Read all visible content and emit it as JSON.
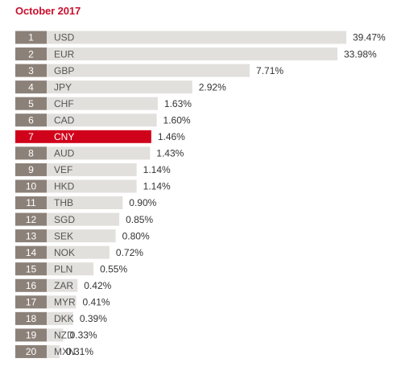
{
  "chart_data": {
    "type": "bar",
    "title": "October 2017",
    "orientation": "horizontal",
    "categories": [
      "USD",
      "EUR",
      "GBP",
      "JPY",
      "CHF",
      "CAD",
      "CNY",
      "AUD",
      "VEF",
      "HKD",
      "THB",
      "SGD",
      "SEK",
      "NOK",
      "PLN",
      "ZAR",
      "MYR",
      "DKK",
      "NZD",
      "MXN"
    ],
    "ranks": [
      "1",
      "2",
      "3",
      "4",
      "5",
      "6",
      "7",
      "8",
      "9",
      "10",
      "11",
      "12",
      "13",
      "14",
      "15",
      "16",
      "17",
      "18",
      "19",
      "20"
    ],
    "values": [
      39.47,
      33.98,
      7.71,
      2.92,
      1.63,
      1.6,
      1.46,
      1.43,
      1.14,
      1.14,
      0.9,
      0.85,
      0.8,
      0.72,
      0.55,
      0.42,
      0.41,
      0.39,
      0.33,
      0.31
    ],
    "value_labels": [
      "39.47%",
      "33.98%",
      "7.71%",
      "2.92%",
      "1.63%",
      "1.60%",
      "1.46%",
      "1.43%",
      "1.14%",
      "1.14%",
      "0.90%",
      "0.85%",
      "0.80%",
      "0.72%",
      "0.55%",
      "0.42%",
      "0.41%",
      "0.39%",
      "0.33%",
      "0.31%"
    ],
    "highlighted_category": "CNY",
    "colors": {
      "bar": "#e2e0dd",
      "rank_box": "#8c8179",
      "highlight": "#d0021b",
      "title": "#c8102e"
    }
  }
}
